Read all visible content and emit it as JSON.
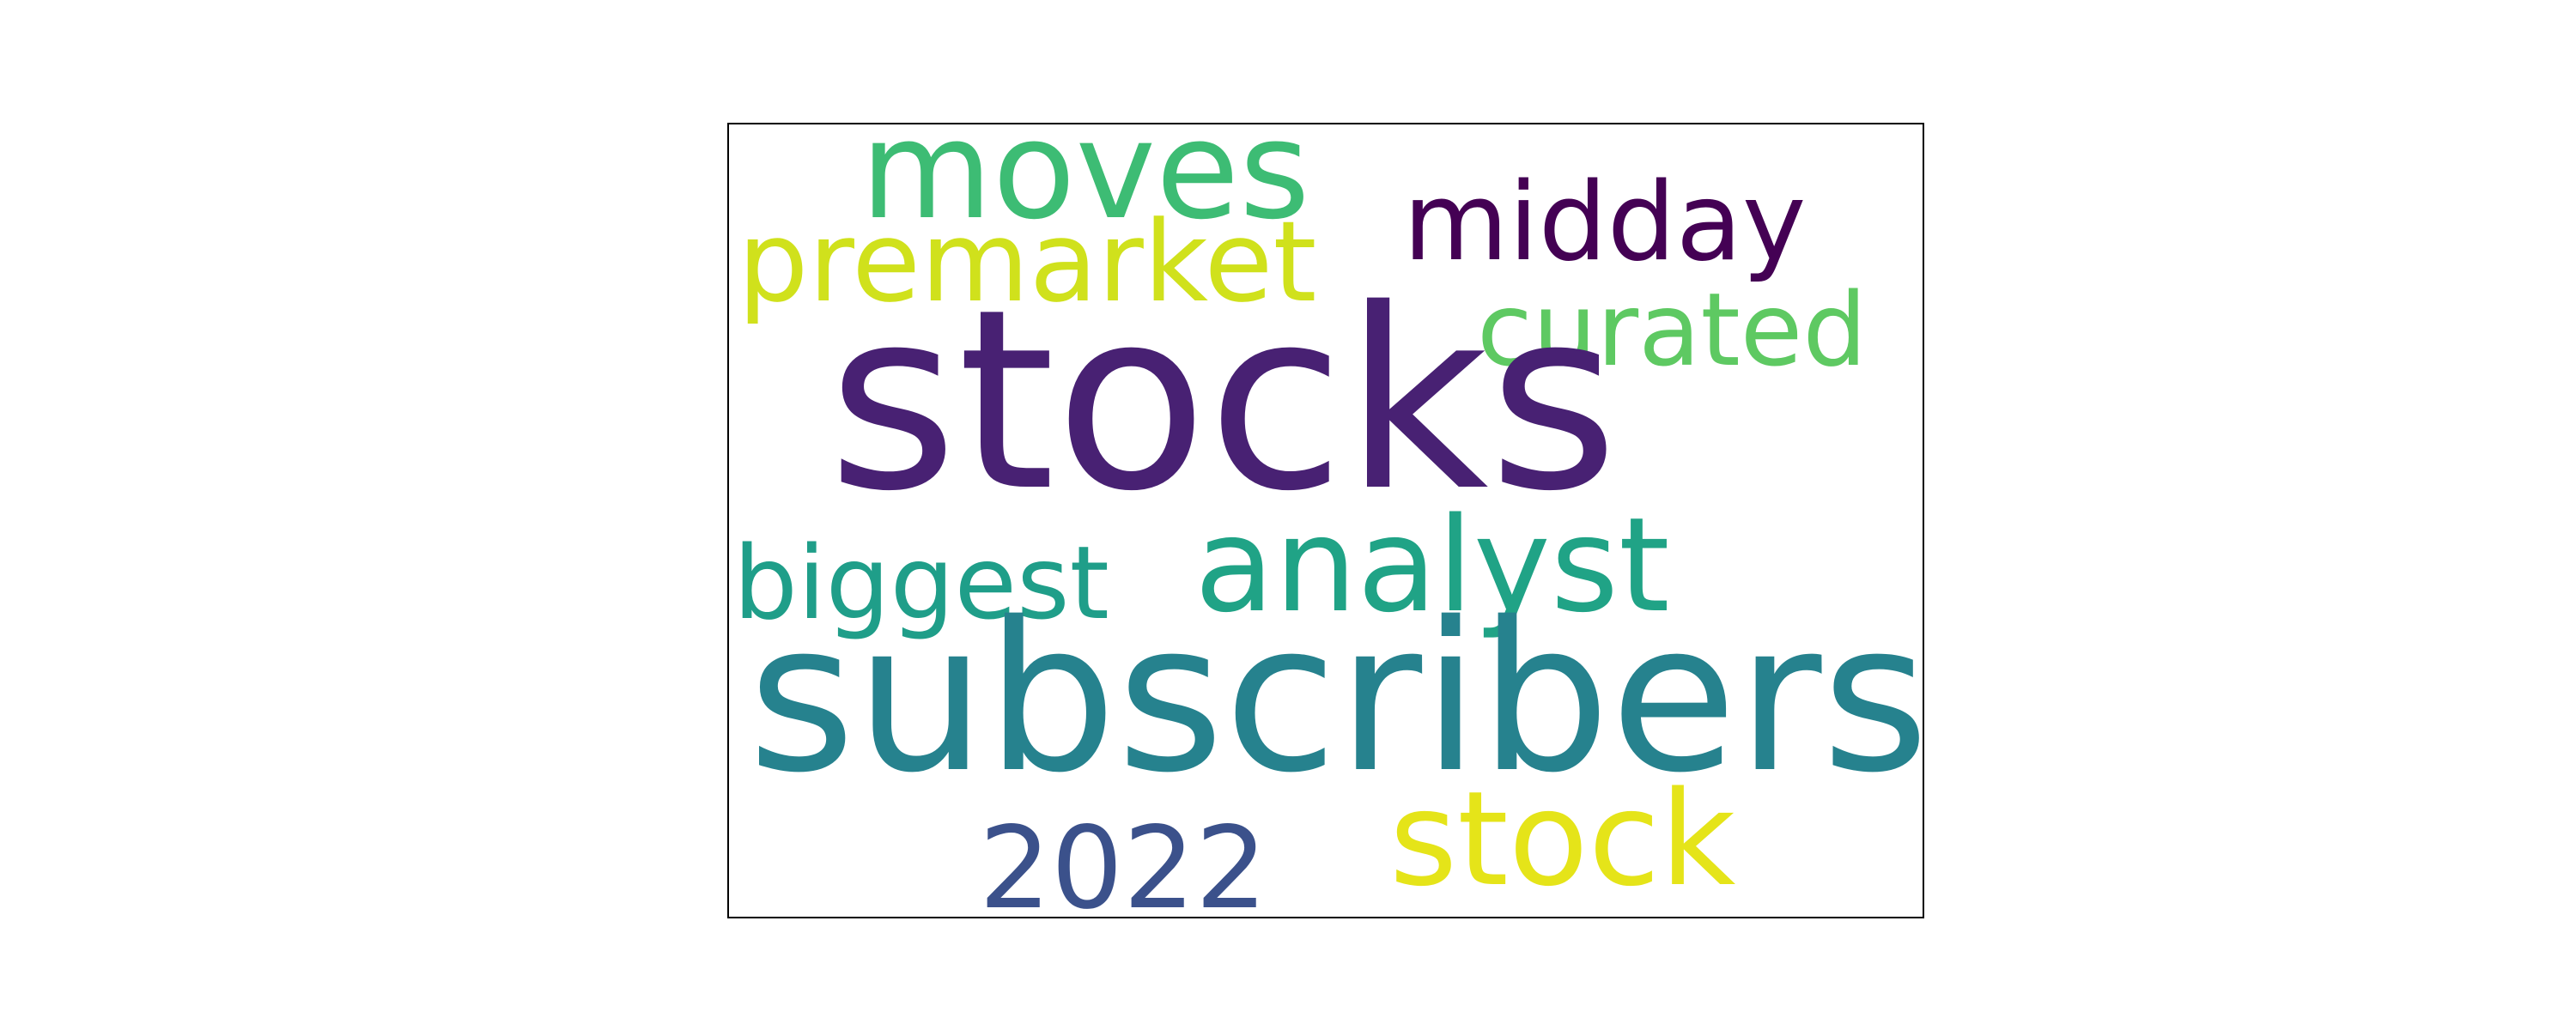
{
  "word_cloud": {
    "words": [
      {
        "key": "moves",
        "text": "moves",
        "color": "#3dbc74"
      },
      {
        "key": "midday",
        "text": "midday",
        "color": "#440154"
      },
      {
        "key": "premarket",
        "text": "premarket",
        "color": "#d0e11c"
      },
      {
        "key": "curated",
        "text": "curated",
        "color": "#5ec962"
      },
      {
        "key": "stocks",
        "text": "stocks",
        "color": "#482173"
      },
      {
        "key": "analyst",
        "text": "analyst",
        "color": "#20a386"
      },
      {
        "key": "biggest",
        "text": "biggest",
        "color": "#1f9e89"
      },
      {
        "key": "subscribers",
        "text": "subscribers",
        "color": "#26828e"
      },
      {
        "key": "stock",
        "text": "stock",
        "color": "#e5e419"
      },
      {
        "key": "year",
        "text": "2022",
        "color": "#3b518b"
      }
    ]
  }
}
